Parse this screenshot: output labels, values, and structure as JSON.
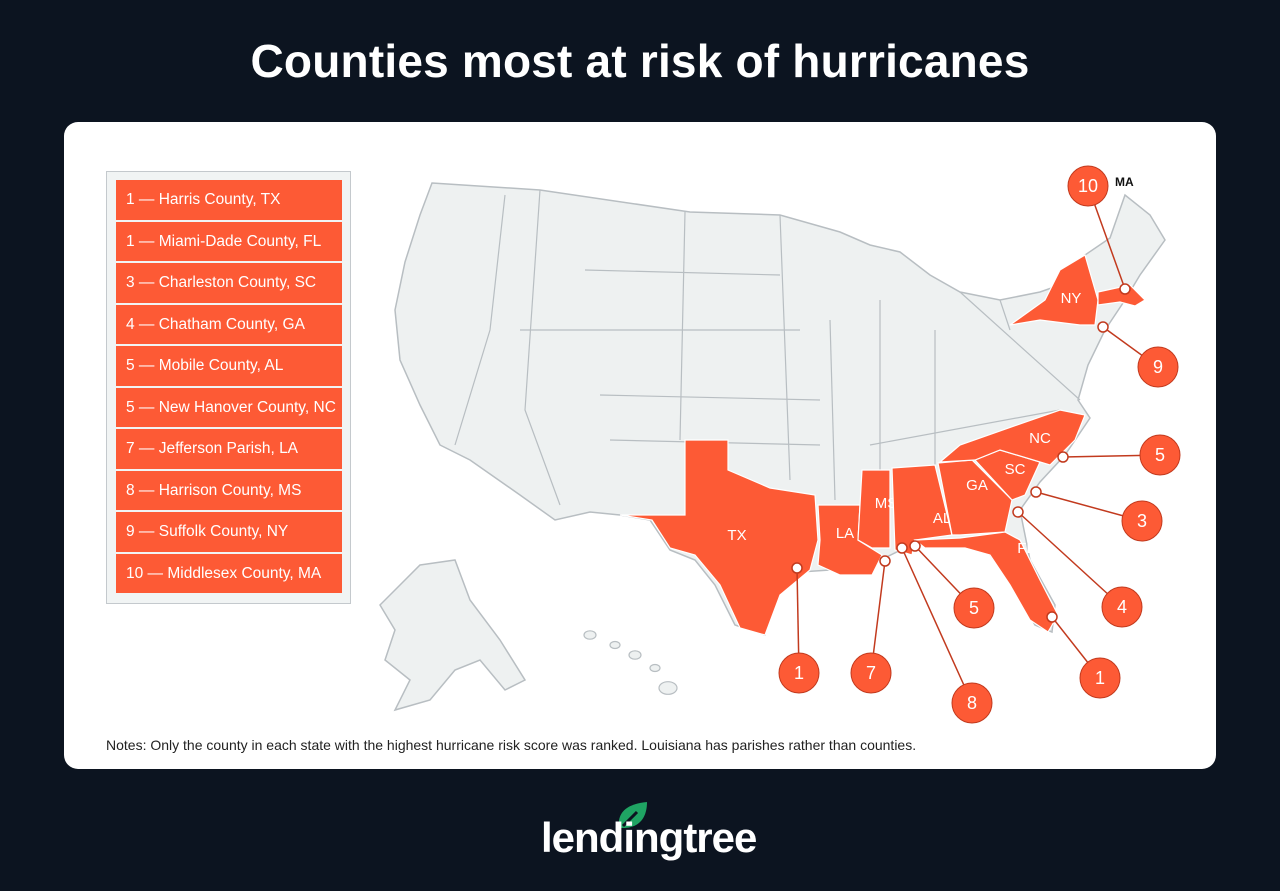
{
  "title": "Counties most at risk of hurricanes",
  "legend": [
    "1 — Harris County, TX",
    "1 — Miami-Dade County, FL",
    "3 — Charleston County, SC",
    "4 — Chatham County, GA",
    "5 — Mobile County, AL",
    "5 — New Hanover County, NC",
    "7 — Jefferson Parish, LA",
    "8 — Harrison County, MS",
    "9 — Suffolk County, NY",
    "10 — Middlesex County, MA"
  ],
  "highlighted_states": [
    "TX",
    "LA",
    "MS",
    "AL",
    "GA",
    "FL",
    "SC",
    "NC",
    "NY",
    "MA"
  ],
  "callouts": [
    {
      "state": "TX",
      "rank": "1"
    },
    {
      "state": "LA",
      "rank": "7"
    },
    {
      "state": "MS",
      "rank": "8"
    },
    {
      "state": "AL",
      "rank": "5"
    },
    {
      "state": "FL",
      "rank": "1"
    },
    {
      "state": "GA",
      "rank": "4"
    },
    {
      "state": "SC",
      "rank": "3"
    },
    {
      "state": "NC",
      "rank": "5"
    },
    {
      "state": "NY",
      "rank": "9"
    },
    {
      "state": "MA",
      "rank": "10"
    }
  ],
  "ma_label": "MA",
  "colors": {
    "highlight": "#fd5a35",
    "land": "#eef1f1",
    "border": "#b8bec2",
    "background": "#0c1420",
    "logo_leaf": "#1fa463"
  },
  "notes": "Notes: Only the county in each state with the highest hurricane risk score was ranked. Louisiana has parishes rather than counties.",
  "logo": "lendingtree"
}
